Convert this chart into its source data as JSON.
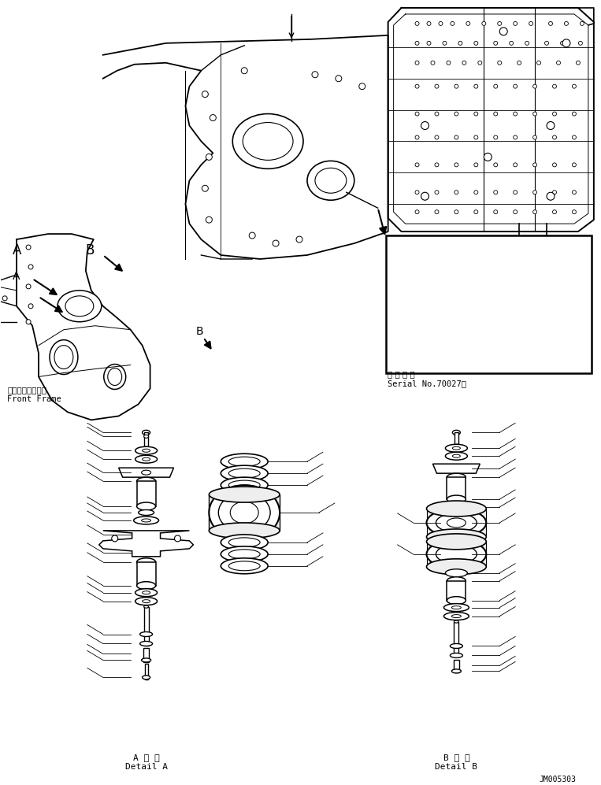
{
  "background_color": "#ffffff",
  "line_color": "#000000",
  "title_bottom_right": "JM005303",
  "detail_a_label_jp": "A 詳 細",
  "detail_a_label_en": "Detail A",
  "detail_b_label_jp": "B 詳 細",
  "detail_b_label_en": "Detail B",
  "front_frame_jp": "フロントフレーム",
  "front_frame_en": "Front Frame",
  "serial_jp": "適 用 号 機",
  "serial_en": "Serial No.70027～",
  "label_A": "A",
  "label_B": "B",
  "fig_width": 7.63,
  "fig_height": 9.97,
  "dpi": 100
}
